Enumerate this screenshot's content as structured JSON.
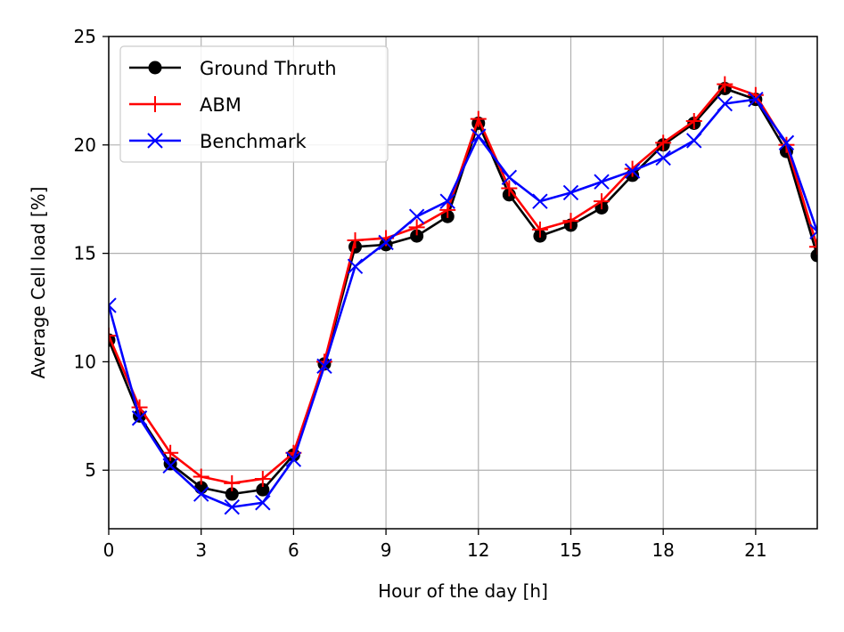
{
  "chart_data": {
    "type": "line",
    "title": "",
    "xlabel": "Hour of the day [h]",
    "ylabel": "Average Cell load [%]",
    "xlim": [
      0,
      23
    ],
    "ylim": [
      2.3,
      25
    ],
    "xticks": [
      0,
      3,
      6,
      9,
      12,
      15,
      18,
      21
    ],
    "yticks": [
      5,
      10,
      15,
      20,
      25
    ],
    "grid": true,
    "legend_position": "upper-left",
    "x": [
      0,
      1,
      2,
      3,
      4,
      5,
      6,
      7,
      8,
      9,
      10,
      11,
      12,
      13,
      14,
      15,
      16,
      17,
      18,
      19,
      20,
      21,
      22,
      23
    ],
    "series": [
      {
        "name": "Ground Thruth",
        "color": "#000000",
        "marker": "circle",
        "values": [
          11.0,
          7.5,
          5.3,
          4.2,
          3.9,
          4.1,
          5.7,
          9.9,
          15.3,
          15.4,
          15.8,
          16.7,
          21.0,
          17.7,
          15.8,
          16.3,
          17.1,
          18.6,
          20.0,
          21.0,
          22.6,
          22.1,
          19.7,
          14.9
        ]
      },
      {
        "name": "ABM",
        "color": "#ff0000",
        "marker": "plus",
        "values": [
          11.2,
          7.9,
          5.8,
          4.7,
          4.4,
          4.6,
          5.8,
          10.0,
          15.6,
          15.7,
          16.2,
          17.0,
          21.2,
          18.0,
          16.1,
          16.5,
          17.4,
          18.9,
          20.1,
          21.1,
          22.8,
          22.3,
          20.0,
          15.3
        ]
      },
      {
        "name": "Benchmark",
        "color": "#0000ff",
        "marker": "x",
        "values": [
          12.6,
          7.4,
          5.2,
          3.9,
          3.3,
          3.5,
          5.5,
          9.8,
          14.4,
          15.5,
          16.7,
          17.4,
          20.4,
          18.5,
          17.4,
          17.8,
          18.3,
          18.8,
          19.4,
          20.2,
          21.9,
          22.1,
          20.1,
          16.0
        ]
      }
    ]
  }
}
